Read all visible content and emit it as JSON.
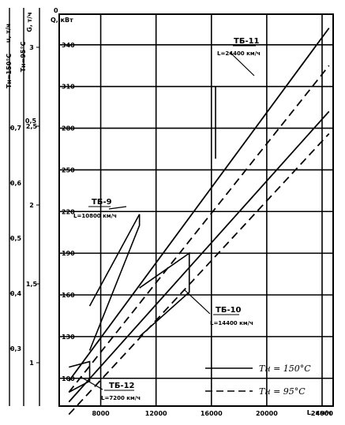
{
  "chart_data": {
    "type": "line",
    "title": "",
    "xlabel": "L, км/ч",
    "x_ticks": [
      "8000",
      "12000",
      "16000",
      "20000",
      "24000"
    ],
    "y_axes": [
      {
        "label": "Q, кВт",
        "ticks": [
          "0",
          "100",
          "130",
          "160",
          "190",
          "220",
          "250",
          "280",
          "310",
          "340"
        ]
      },
      {
        "label": "G, т/ч",
        "ticks": [
          "1",
          "1,5",
          "2",
          "2,5",
          "3"
        ]
      },
      {
        "label": "u, т/ч",
        "ticks": [
          "0,5"
        ]
      },
      {
        "label": "Tн=95°C",
        "ticks": []
      },
      {
        "label": "Tн=150°C",
        "ticks": [
          "0,3",
          "0,4",
          "0,5",
          "0,6",
          "0,7"
        ]
      }
    ],
    "xlim": [
      5000,
      24800
    ],
    "ylim": [
      80,
      362
    ],
    "grid": true,
    "legend_position": "bottom-right",
    "legend": [
      {
        "label": "Tн = 150°C",
        "style": "solid"
      },
      {
        "label": "Tн = 95°C",
        "style": "dashed"
      }
    ],
    "annotations": [
      {
        "title": "ТБ-11",
        "subtitle": "L=24400 км/ч"
      },
      {
        "title": "ТБ-9",
        "subtitle": "L=10800 км/ч"
      },
      {
        "title": "ТБ-10",
        "subtitle": "L=14400 км/ч"
      },
      {
        "title": "ТБ-12",
        "subtitle": "L=7200 км/ч"
      }
    ],
    "series": [
      {
        "style": "solid",
        "points": [
          [
            5700,
            98
          ],
          [
            24500,
            352
          ]
        ]
      },
      {
        "style": "dashed",
        "points": [
          [
            5700,
            90
          ],
          [
            24500,
            325
          ]
        ]
      },
      {
        "style": "solid",
        "points": [
          [
            5700,
            83
          ],
          [
            24500,
            292
          ]
        ]
      },
      {
        "style": "dashed",
        "points": [
          [
            5700,
            74
          ],
          [
            24500,
            276
          ]
        ]
      }
    ],
    "segments": [
      {
        "name": "ТБ-12",
        "points": [
          [
            5700,
            108
          ],
          [
            7200,
            112
          ],
          [
            7200,
            98
          ],
          [
            5700,
            90
          ]
        ]
      },
      {
        "name": "ТБ-9",
        "points": [
          [
            7200,
            120
          ],
          [
            10800,
            210
          ],
          [
            10800,
            218
          ],
          [
            7200,
            152
          ]
        ]
      },
      {
        "name": "ТБ-10",
        "points": [
          [
            10800,
            130
          ],
          [
            14400,
            162
          ],
          [
            14400,
            190
          ],
          [
            10800,
            165
          ]
        ]
      },
      {
        "name": "ТБ-11",
        "points": [
          [
            16300,
            258
          ],
          [
            16300,
            310
          ]
        ]
      }
    ]
  }
}
